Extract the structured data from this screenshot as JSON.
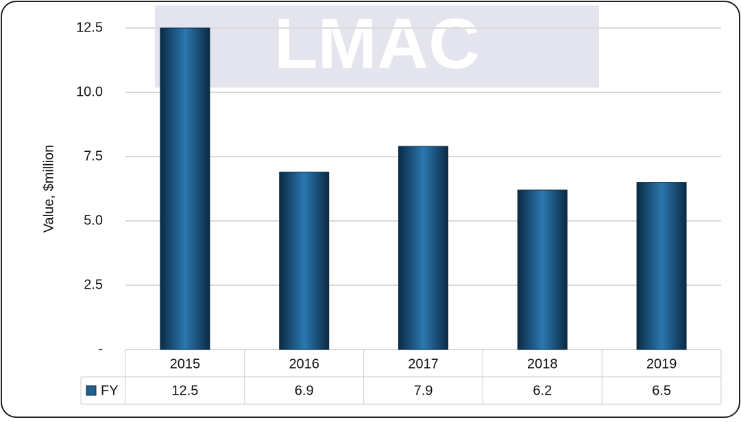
{
  "chart_data": {
    "type": "bar",
    "watermark": "LMAC",
    "y_label": "Value, $million",
    "categories": [
      "2015",
      "2016",
      "2017",
      "2018",
      "2019"
    ],
    "series": [
      {
        "name": "FY",
        "color": "#1f5f8f",
        "values": [
          12.5,
          6.9,
          7.9,
          6.2,
          6.5
        ]
      }
    ],
    "ylim": [
      0,
      12.5
    ],
    "yticks": [
      {
        "value": 0,
        "label": "-"
      },
      2.5,
      {
        "value": 5,
        "label": "5.0"
      },
      7.5,
      {
        "value": 10,
        "label": "10.0"
      },
      12.5
    ],
    "grid": true,
    "data_table": true
  }
}
